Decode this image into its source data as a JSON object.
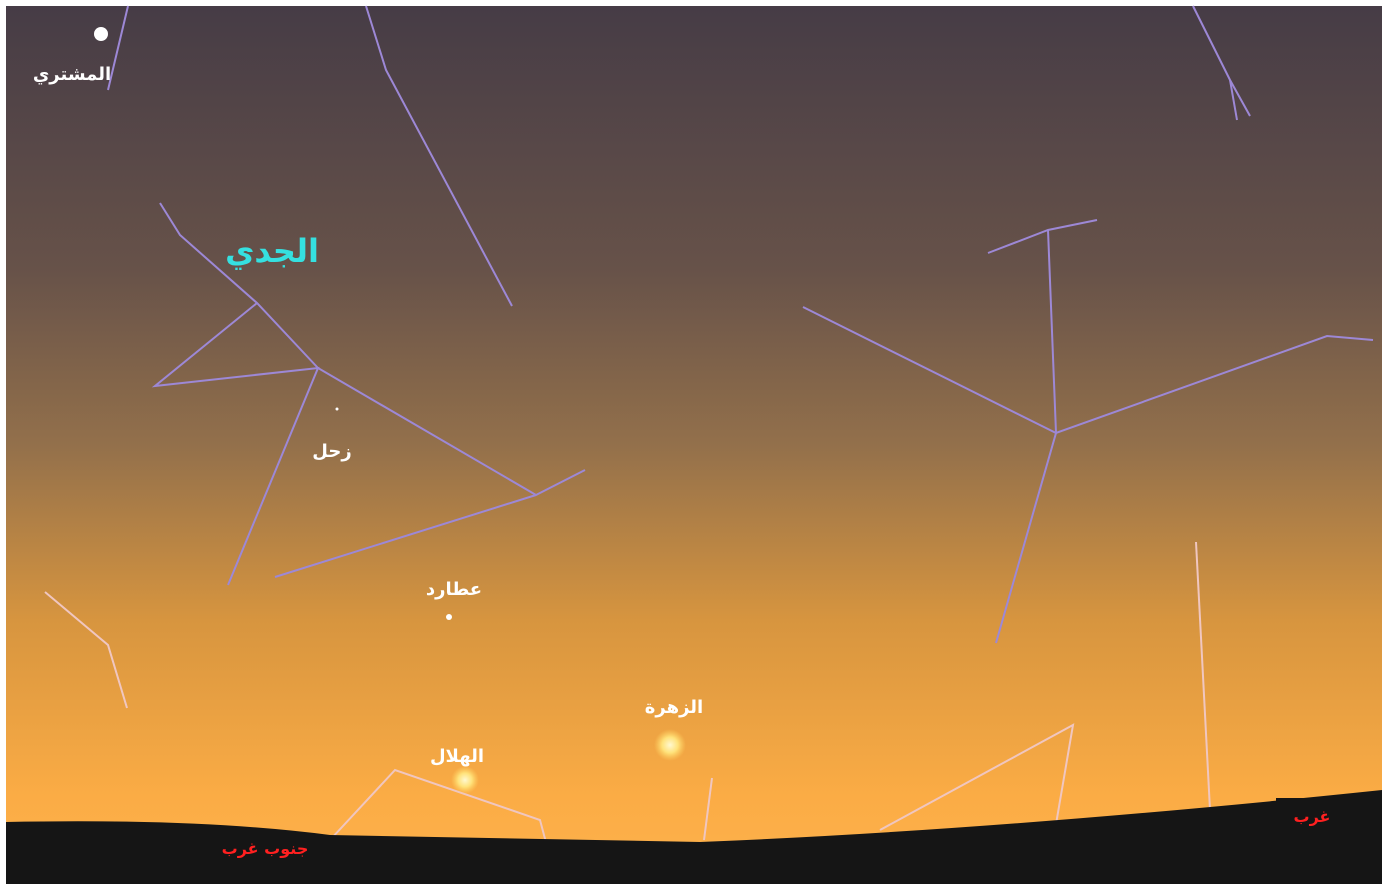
{
  "labels": {
    "jupiter": "المشتري",
    "constellation": "الجدي",
    "saturn": "زحل",
    "mercury": "عطارد",
    "venus": "الزهرة",
    "moon": "الهلال",
    "west": "غرب",
    "southwest": "جنوب غرب"
  }
}
